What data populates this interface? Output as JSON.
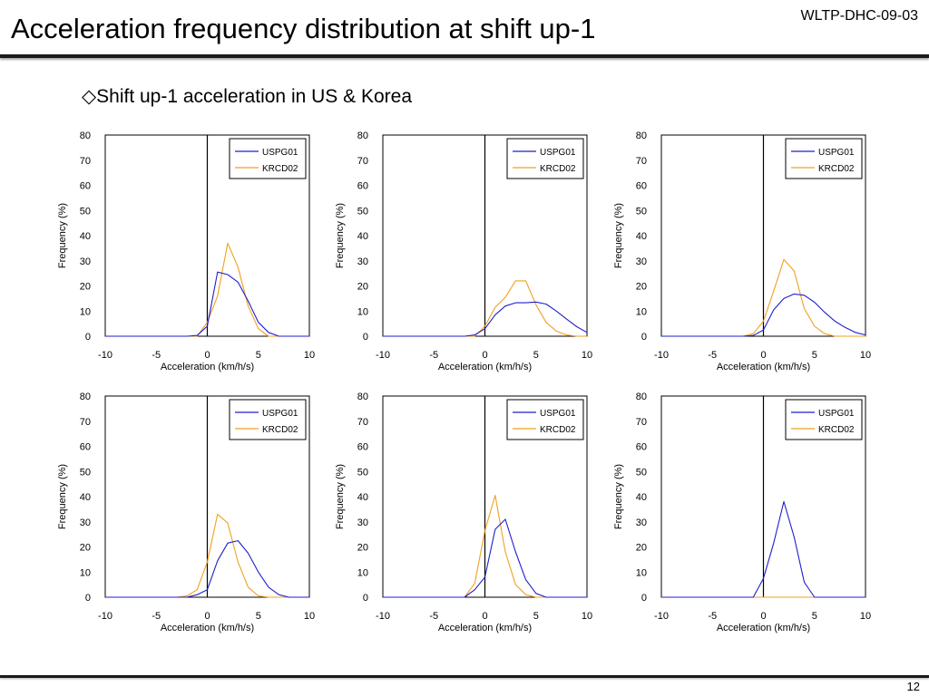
{
  "header": {
    "title": "Acceleration frequency distribution at shift up-1",
    "doc_id": "WLTP-DHC-09-03"
  },
  "subtitle": "◇Shift up-1 acceleration in US & Korea",
  "footer": {
    "page_number": "12"
  },
  "colors": {
    "USPG01": "#1f1fcc",
    "KRCD02": "#f0a020"
  },
  "chart_data": [
    {
      "type": "line",
      "xlabel": "Acceleration (km/h/s)",
      "ylabel": "Frequency (%)",
      "xlim": [
        -10,
        10
      ],
      "ylim": [
        0,
        80
      ],
      "xticks": [
        -10,
        -5,
        0,
        5,
        10
      ],
      "yticks": [
        0,
        10,
        20,
        30,
        40,
        50,
        60,
        70,
        80
      ],
      "legend_position": "top-right",
      "series": [
        {
          "name": "USPG01",
          "x": [
            -10,
            -9,
            -8,
            -7,
            -6,
            -5,
            -4,
            -3,
            -2,
            -1,
            0,
            1,
            2,
            3,
            4,
            5,
            6,
            7,
            8,
            9,
            10
          ],
          "values": [
            0,
            0,
            0,
            0,
            0,
            0,
            0,
            0,
            0,
            0.3,
            4,
            25.5,
            24.5,
            21.5,
            14,
            5.5,
            1.5,
            0,
            0,
            0,
            0
          ]
        },
        {
          "name": "KRCD02",
          "x": [
            -10,
            -9,
            -8,
            -7,
            -6,
            -5,
            -4,
            -3,
            -2,
            -1,
            0,
            1,
            2,
            3,
            4,
            5,
            6,
            7,
            8,
            9,
            10
          ],
          "values": [
            0,
            0,
            0,
            0,
            0,
            0,
            0,
            0,
            0,
            0,
            5.5,
            16,
            37,
            27.5,
            12,
            3,
            0,
            0,
            0,
            0,
            0
          ]
        }
      ]
    },
    {
      "type": "line",
      "xlabel": "Acceleration (km/h/s)",
      "ylabel": "Frequency (%)",
      "xlim": [
        -10,
        10
      ],
      "ylim": [
        0,
        80
      ],
      "xticks": [
        -10,
        -5,
        0,
        5,
        10
      ],
      "yticks": [
        0,
        10,
        20,
        30,
        40,
        50,
        60,
        70,
        80
      ],
      "legend_position": "top-right",
      "series": [
        {
          "name": "USPG01",
          "x": [
            -10,
            -9,
            -8,
            -7,
            -6,
            -5,
            -4,
            -3,
            -2,
            -1,
            0,
            1,
            2,
            3,
            4,
            5,
            6,
            7,
            8,
            9,
            10
          ],
          "values": [
            0,
            0,
            0,
            0,
            0,
            0,
            0,
            0,
            0,
            0.5,
            3,
            8.5,
            12,
            13.3,
            13.3,
            13.6,
            12.8,
            10,
            6.8,
            3.8,
            1.5
          ]
        },
        {
          "name": "KRCD02",
          "x": [
            -10,
            -9,
            -8,
            -7,
            -6,
            -5,
            -4,
            -3,
            -2,
            -1,
            0,
            1,
            2,
            3,
            4,
            5,
            6,
            7,
            8,
            9,
            10
          ],
          "values": [
            0,
            0,
            0,
            0,
            0,
            0,
            0,
            0,
            0,
            0,
            4,
            11.5,
            15.5,
            22,
            22,
            12.5,
            5.5,
            2,
            0.5,
            0,
            0
          ]
        }
      ]
    },
    {
      "type": "line",
      "xlabel": "Acceleration (km/h/s)",
      "ylabel": "Frequency (%)",
      "xlim": [
        -10,
        10
      ],
      "ylim": [
        0,
        80
      ],
      "xticks": [
        -10,
        -5,
        0,
        5,
        10
      ],
      "yticks": [
        0,
        10,
        20,
        30,
        40,
        50,
        60,
        70,
        80
      ],
      "legend_position": "top-right",
      "series": [
        {
          "name": "USPG01",
          "x": [
            -10,
            -9,
            -8,
            -7,
            -6,
            -5,
            -4,
            -3,
            -2,
            -1,
            0,
            1,
            2,
            3,
            4,
            5,
            6,
            7,
            8,
            9,
            10
          ],
          "values": [
            0,
            0,
            0,
            0,
            0,
            0,
            0,
            0,
            0,
            0.3,
            2.5,
            10.5,
            15,
            16.8,
            16.3,
            13.5,
            9.5,
            6,
            3.5,
            1.5,
            0.5
          ]
        },
        {
          "name": "KRCD02",
          "x": [
            -10,
            -9,
            -8,
            -7,
            -6,
            -5,
            -4,
            -3,
            -2,
            -1,
            0,
            1,
            2,
            3,
            4,
            5,
            6,
            7,
            8,
            9,
            10
          ],
          "values": [
            0,
            0,
            0,
            0,
            0,
            0,
            0,
            0,
            0,
            1,
            6,
            18,
            30.5,
            26,
            11,
            4,
            1,
            0,
            0,
            0,
            0
          ]
        }
      ]
    },
    {
      "type": "line",
      "xlabel": "Acceleration (km/h/s)",
      "ylabel": "Frequency (%)",
      "xlim": [
        -10,
        10
      ],
      "ylim": [
        0,
        80
      ],
      "xticks": [
        -10,
        -5,
        0,
        5,
        10
      ],
      "yticks": [
        0,
        10,
        20,
        30,
        40,
        50,
        60,
        70,
        80
      ],
      "legend_position": "top-right",
      "series": [
        {
          "name": "USPG01",
          "x": [
            -10,
            -9,
            -8,
            -7,
            -6,
            -5,
            -4,
            -3,
            -2,
            -1,
            0,
            1,
            2,
            3,
            4,
            5,
            6,
            7,
            8,
            9,
            10
          ],
          "values": [
            0,
            0,
            0,
            0,
            0,
            0,
            0,
            0,
            0,
            1,
            3,
            14.5,
            21.5,
            22.5,
            17.5,
            10,
            4,
            1,
            0,
            0,
            0
          ]
        },
        {
          "name": "KRCD02",
          "x": [
            -10,
            -9,
            -8,
            -7,
            -6,
            -5,
            -4,
            -3,
            -2,
            -1,
            0,
            1,
            2,
            3,
            4,
            5,
            6,
            7,
            8,
            9,
            10
          ],
          "values": [
            0,
            0,
            0,
            0,
            0,
            0,
            0,
            0,
            0.5,
            3,
            14,
            33,
            29.5,
            14,
            4,
            0.5,
            0,
            0,
            0,
            0,
            0
          ]
        }
      ]
    },
    {
      "type": "line",
      "xlabel": "Acceleration (km/h/s)",
      "ylabel": "Frequency (%)",
      "xlim": [
        -10,
        10
      ],
      "ylim": [
        0,
        80
      ],
      "xticks": [
        -10,
        -5,
        0,
        5,
        10
      ],
      "yticks": [
        0,
        10,
        20,
        30,
        40,
        50,
        60,
        70,
        80
      ],
      "legend_position": "top-right",
      "series": [
        {
          "name": "USPG01",
          "x": [
            -10,
            -9,
            -8,
            -7,
            -6,
            -5,
            -4,
            -3,
            -2,
            -1,
            0,
            1,
            2,
            3,
            4,
            5,
            6,
            7,
            8,
            9,
            10
          ],
          "values": [
            0,
            0,
            0,
            0,
            0,
            0,
            0,
            0,
            0,
            3,
            8,
            27,
            31,
            18,
            7,
            1.5,
            0,
            0,
            0,
            0,
            0
          ]
        },
        {
          "name": "KRCD02",
          "x": [
            -10,
            -9,
            -8,
            -7,
            -6,
            -5,
            -4,
            -3,
            -2,
            -1,
            0,
            1,
            2,
            3,
            4,
            5,
            6,
            7,
            8,
            9,
            10
          ],
          "values": [
            0,
            0,
            0,
            0,
            0,
            0,
            0,
            0,
            0,
            5.5,
            26.5,
            40.5,
            18,
            5,
            1,
            0,
            0,
            0,
            0,
            0,
            0
          ]
        }
      ]
    },
    {
      "type": "line",
      "xlabel": "Acceleration (km/h/s)",
      "ylabel": "Frequency (%)",
      "xlim": [
        -10,
        10
      ],
      "ylim": [
        0,
        80
      ],
      "xticks": [
        -10,
        -5,
        0,
        5,
        10
      ],
      "yticks": [
        0,
        10,
        20,
        30,
        40,
        50,
        60,
        70,
        80
      ],
      "legend_position": "top-right",
      "series": [
        {
          "name": "USPG01",
          "x": [
            -10,
            -9,
            -8,
            -7,
            -6,
            -5,
            -4,
            -3,
            -2,
            -1,
            0,
            1,
            2,
            3,
            4,
            5,
            6,
            7,
            8,
            9,
            10
          ],
          "values": [
            0,
            0,
            0,
            0,
            0,
            0,
            0,
            0,
            0,
            0,
            7.5,
            21.5,
            38,
            24,
            6,
            0,
            0,
            0,
            0,
            0,
            0
          ]
        },
        {
          "name": "KRCD02",
          "x": [
            -10,
            -9,
            -8,
            -7,
            -6,
            -5,
            -4,
            -3,
            -2,
            -1,
            0,
            1,
            2,
            3,
            4,
            5,
            6,
            7,
            8,
            9,
            10
          ],
          "values": [
            0,
            0,
            0,
            0,
            0,
            0,
            0,
            0,
            0,
            0,
            0,
            0,
            0,
            0,
            0,
            0,
            0,
            0,
            0,
            0,
            0
          ]
        }
      ]
    }
  ]
}
